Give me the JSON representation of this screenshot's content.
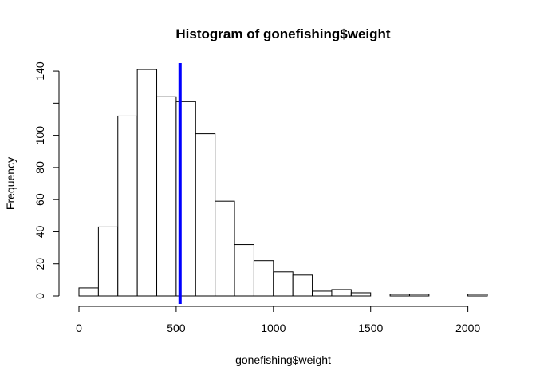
{
  "chart_data": {
    "type": "histogram",
    "title": "Histogram of gonefishing$weight",
    "xlabel": "gonefishing$weight",
    "ylabel": "Frequency",
    "bin_width": 100,
    "bins": [
      {
        "start": 0,
        "end": 100,
        "count": 5
      },
      {
        "start": 100,
        "end": 200,
        "count": 43
      },
      {
        "start": 200,
        "end": 300,
        "count": 112
      },
      {
        "start": 300,
        "end": 400,
        "count": 141
      },
      {
        "start": 400,
        "end": 500,
        "count": 124
      },
      {
        "start": 500,
        "end": 600,
        "count": 121
      },
      {
        "start": 600,
        "end": 700,
        "count": 101
      },
      {
        "start": 700,
        "end": 800,
        "count": 59
      },
      {
        "start": 800,
        "end": 900,
        "count": 32
      },
      {
        "start": 900,
        "end": 1000,
        "count": 22
      },
      {
        "start": 1000,
        "end": 1100,
        "count": 15
      },
      {
        "start": 1100,
        "end": 1200,
        "count": 13
      },
      {
        "start": 1200,
        "end": 1300,
        "count": 3
      },
      {
        "start": 1300,
        "end": 1400,
        "count": 4
      },
      {
        "start": 1400,
        "end": 1500,
        "count": 2
      },
      {
        "start": 1500,
        "end": 1600,
        "count": 0
      },
      {
        "start": 1600,
        "end": 1700,
        "count": 1
      },
      {
        "start": 1700,
        "end": 1800,
        "count": 1
      },
      {
        "start": 1800,
        "end": 1900,
        "count": 0
      },
      {
        "start": 1900,
        "end": 2000,
        "count": 0
      },
      {
        "start": 2000,
        "end": 2100,
        "count": 1
      }
    ],
    "xlim": [
      0,
      2100
    ],
    "ylim": [
      0,
      145
    ],
    "x_ticks": [
      0,
      500,
      1000,
      1500,
      2000
    ],
    "y_ticks": [
      0,
      20,
      40,
      60,
      80,
      100,
      140
    ],
    "y_minor_ticks": [
      120
    ],
    "vline": {
      "x": 520,
      "color": "#0000ff"
    },
    "bar_fill": "#ffffff",
    "bar_stroke": "#000000",
    "grid": false,
    "legend": "none"
  }
}
